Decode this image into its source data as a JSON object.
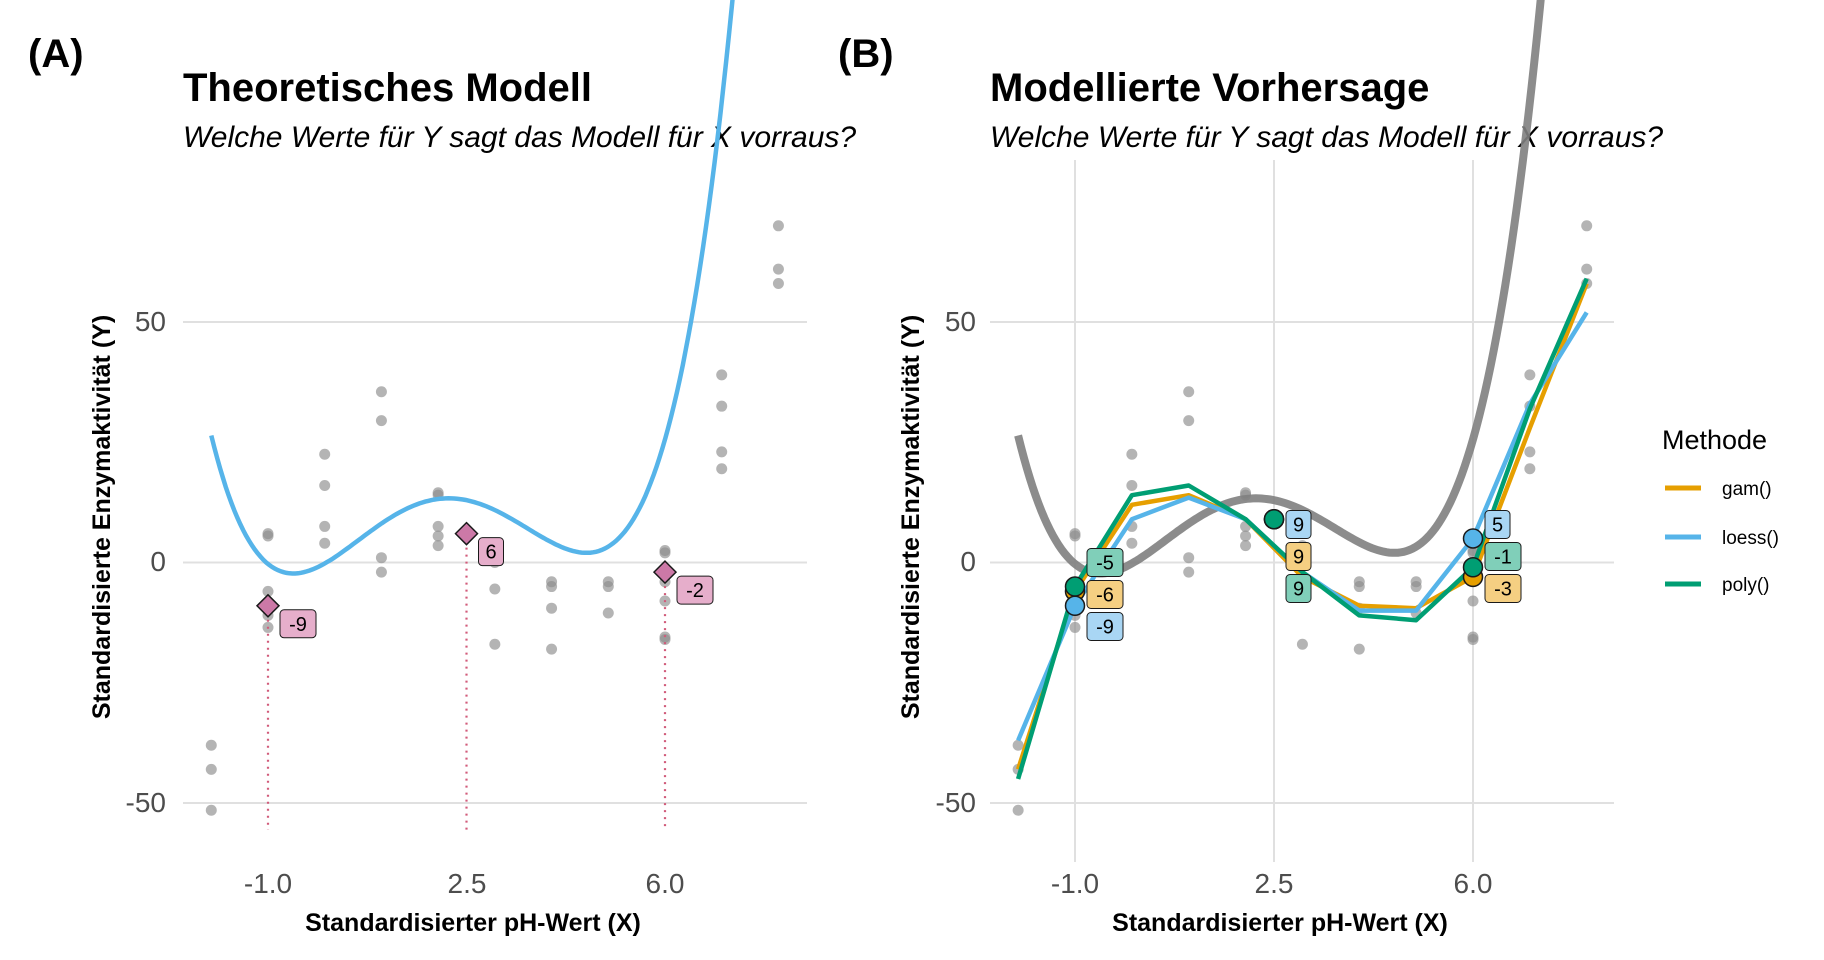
{
  "figure": {
    "panels": [
      {
        "tag": "(A)",
        "title": "Theoretisches Modell",
        "subtitle": "Welche Werte für Y sagt das Modell für X vorraus?",
        "xlabel": "Standardisierter pH-Wert (X)",
        "ylabel": "Standardisierte Enzymaktivität (Y)",
        "xticks": [
          "-1.0",
          "2.5",
          "6.0"
        ],
        "yticks": [
          "50",
          "0",
          "-50"
        ]
      },
      {
        "tag": "(B)",
        "title": "Modellierte Vorhersage",
        "subtitle": "Welche Werte für Y sagt das Modell für X vorraus?",
        "xlabel": "Standardisierter pH-Wert (X)",
        "ylabel": "Standardisierte Enzymaktivität (Y)",
        "xticks": [
          "-1.0",
          "2.5",
          "6.0"
        ],
        "yticks": [
          "50",
          "0",
          "-50"
        ]
      }
    ],
    "legend": {
      "title": "Methode",
      "items": [
        {
          "label": "gam()",
          "color": "#E69F00"
        },
        {
          "label": "loess()",
          "color": "#56B4E9"
        },
        {
          "label": "poly()",
          "color": "#009E73"
        }
      ]
    }
  },
  "chart_data": [
    {
      "type": "scatter",
      "title": "Theoretisches Modell",
      "subtitle": "Welche Werte für Y sagt das Modell für X vorraus?",
      "xlabel": "Standardisierter pH-Wert (X)",
      "ylabel": "Standardisierte Enzymaktivität (Y)",
      "xlim": [
        -2.2,
        8.8
      ],
      "ylim": [
        -61,
        80
      ],
      "xticks": [
        -1.0,
        2.5,
        6.0
      ],
      "yticks": [
        -50,
        0,
        50
      ],
      "points": [
        {
          "x": -2.0,
          "y": -51.5
        },
        {
          "x": -2.0,
          "y": -43
        },
        {
          "x": -2.0,
          "y": -38
        },
        {
          "x": -1.0,
          "y": -13.5
        },
        {
          "x": -1.0,
          "y": -11
        },
        {
          "x": -1.0,
          "y": -9
        },
        {
          "x": -1.0,
          "y": -6
        },
        {
          "x": -1.0,
          "y": 5.5
        },
        {
          "x": -1.0,
          "y": 6
        },
        {
          "x": 0.0,
          "y": 4
        },
        {
          "x": 0.0,
          "y": 7.5
        },
        {
          "x": 0.0,
          "y": 16
        },
        {
          "x": 0.0,
          "y": 22.5
        },
        {
          "x": 1.0,
          "y": -2
        },
        {
          "x": 1.0,
          "y": 1
        },
        {
          "x": 1.0,
          "y": 29.5
        },
        {
          "x": 1.0,
          "y": 35.5
        },
        {
          "x": 2.0,
          "y": 3.5
        },
        {
          "x": 2.0,
          "y": 5.5
        },
        {
          "x": 2.0,
          "y": 7.5
        },
        {
          "x": 2.0,
          "y": 14
        },
        {
          "x": 2.0,
          "y": 14.5
        },
        {
          "x": 3.0,
          "y": -17
        },
        {
          "x": 3.0,
          "y": -5.5
        },
        {
          "x": 3.0,
          "y": 0
        },
        {
          "x": 3.0,
          "y": 3.5
        },
        {
          "x": 4.0,
          "y": -18
        },
        {
          "x": 4.0,
          "y": -9.5
        },
        {
          "x": 4.0,
          "y": -5
        },
        {
          "x": 4.0,
          "y": -4
        },
        {
          "x": 5.0,
          "y": -10.5
        },
        {
          "x": 5.0,
          "y": -5
        },
        {
          "x": 5.0,
          "y": -4
        },
        {
          "x": 6.0,
          "y": -16
        },
        {
          "x": 6.0,
          "y": -15.5
        },
        {
          "x": 6.0,
          "y": -8
        },
        {
          "x": 6.0,
          "y": -4
        },
        {
          "x": 6.0,
          "y": 2
        },
        {
          "x": 6.0,
          "y": 2.5
        },
        {
          "x": 7.0,
          "y": 19.5
        },
        {
          "x": 7.0,
          "y": 23
        },
        {
          "x": 7.0,
          "y": 32.5
        },
        {
          "x": 7.0,
          "y": 39
        },
        {
          "x": 8.0,
          "y": 58
        },
        {
          "x": 8.0,
          "y": 61
        },
        {
          "x": 8.0,
          "y": 70
        }
      ],
      "curve": {
        "name": "theoretical",
        "color": "#56B4E9",
        "coefficients": [
          -0.2,
          6.7,
          3.8,
          -2.5,
          0.3
        ],
        "x_range": [
          -2.0,
          8.2
        ]
      },
      "predictions": [
        {
          "x": -1.0,
          "y": -9,
          "label": "-9"
        },
        {
          "x": 2.5,
          "y": 6,
          "label": "6"
        },
        {
          "x": 6.0,
          "y": -2,
          "label": "-2"
        }
      ],
      "marker_color": "#CC79A7"
    },
    {
      "type": "line",
      "title": "Modellierte Vorhersage",
      "subtitle": "Welche Werte für Y sagt das Modell für X vorraus?",
      "xlabel": "Standardisierter pH-Wert (X)",
      "ylabel": "Standardisierte Enzymaktivität (Y)",
      "xlim": [
        -2.2,
        8.8
      ],
      "ylim": [
        -61,
        80
      ],
      "xticks": [
        -1.0,
        2.5,
        6.0
      ],
      "yticks": [
        -50,
        0,
        50
      ],
      "grid": true,
      "legend_placement": "right",
      "reference_curve": {
        "color": "#7f7f7f",
        "coefficients": [
          -0.2,
          6.7,
          3.8,
          -2.5,
          0.3
        ],
        "x_range": [
          -2.0,
          8.2
        ]
      },
      "series": [
        {
          "name": "gam()",
          "color": "#E69F00",
          "x": [
            -2,
            -1,
            0,
            1,
            2,
            3,
            4,
            5,
            6,
            7,
            8
          ],
          "y": [
            -43,
            -6,
            12,
            14,
            9,
            -3,
            -9,
            -9.5,
            -3,
            28,
            58
          ]
        },
        {
          "name": "loess()",
          "color": "#56B4E9",
          "x": [
            -2,
            -1,
            0,
            1,
            2,
            3,
            4,
            5,
            6,
            7,
            8
          ],
          "y": [
            -37,
            -9,
            9,
            13.5,
            9,
            -2,
            -10,
            -10,
            5,
            33,
            52
          ]
        },
        {
          "name": "poly()",
          "color": "#009E73",
          "x": [
            -2,
            -1,
            0,
            1,
            2,
            3,
            4,
            5,
            6,
            7,
            8
          ],
          "y": [
            -45,
            -5,
            14,
            16,
            9,
            -2,
            -11,
            -12,
            -1,
            32,
            59
          ]
        }
      ],
      "predictions": [
        {
          "series": "gam()",
          "x": -1.0,
          "y": -6,
          "label": "-6"
        },
        {
          "series": "loess()",
          "x": -1.0,
          "y": -9,
          "label": "-9"
        },
        {
          "series": "poly()",
          "x": -1.0,
          "y": -5,
          "label": "-5"
        },
        {
          "series": "gam()",
          "x": 2.5,
          "y": 9,
          "label": "9"
        },
        {
          "series": "loess()",
          "x": 2.5,
          "y": 9,
          "label": "9"
        },
        {
          "series": "poly()",
          "x": 2.5,
          "y": 9,
          "label": "9"
        },
        {
          "series": "gam()",
          "x": 6.0,
          "y": -3,
          "label": "-3"
        },
        {
          "series": "loess()",
          "x": 6.0,
          "y": 5,
          "label": "5"
        },
        {
          "series": "poly()",
          "x": 6.0,
          "y": -1,
          "label": "-1"
        }
      ]
    }
  ]
}
